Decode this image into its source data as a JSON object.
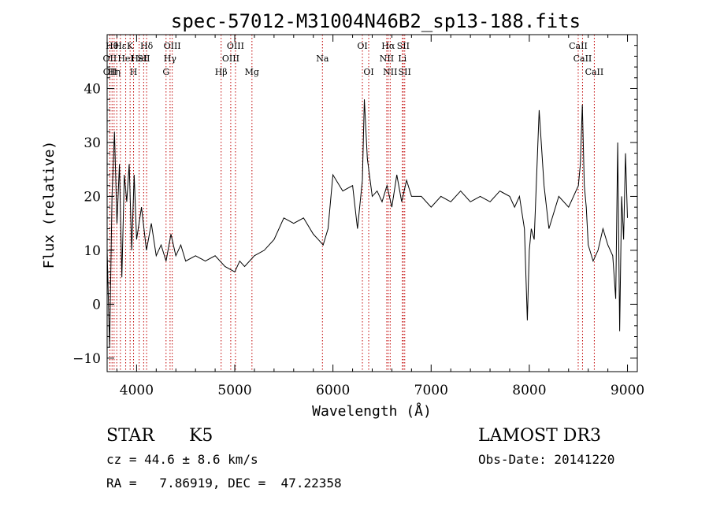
{
  "chart_data": {
    "type": "line",
    "title": "spec-57012-M31004N46B2_sp13-188.fits",
    "xlabel": "Wavelength (Å)",
    "ylabel": "Flux (relative)",
    "xlim": [
      3700,
      9100
    ],
    "ylim": [
      -12.5,
      50
    ],
    "x_ticks": [
      4000,
      5000,
      6000,
      7000,
      8000,
      9000
    ],
    "x_tick_labels": [
      "4000",
      "5000",
      "6000",
      "7000",
      "8000",
      "9000"
    ],
    "y_ticks": [
      -10,
      0,
      10,
      20,
      30,
      40
    ],
    "y_tick_labels": [
      "−10",
      "0",
      "10",
      "20",
      "30",
      "40"
    ],
    "grid": false,
    "line_color": "#000000",
    "marker_color": "#c00000",
    "series": [
      {
        "x": [
          3700,
          3725,
          3750,
          3775,
          3800,
          3825,
          3850,
          3875,
          3900,
          3925,
          3950,
          3975,
          4000,
          4050,
          4100,
          4150,
          4200,
          4250,
          4300,
          4350,
          4400,
          4450,
          4500,
          4600,
          4700,
          4800,
          4900,
          5000,
          5050,
          5100,
          5200,
          5300,
          5400,
          5500,
          5600,
          5700,
          5800,
          5850,
          5900,
          5950,
          6000,
          6100,
          6200,
          6250,
          6300,
          6320,
          6350,
          6400,
          6450,
          6500,
          6550,
          6600,
          6650,
          6700,
          6750,
          6800,
          6900,
          7000,
          7100,
          7200,
          7300,
          7400,
          7500,
          7600,
          7700,
          7800,
          7850,
          7900,
          7950,
          7980,
          8000,
          8020,
          8050,
          8100,
          8150,
          8200,
          8300,
          8400,
          8450,
          8500,
          8520,
          8540,
          8560,
          8580,
          8600,
          8650,
          8700,
          8750,
          8800,
          8850,
          8880,
          8900,
          8920,
          8940,
          8960,
          8980,
          9000
        ],
        "y": [
          10,
          -8,
          20,
          32,
          15,
          26,
          5,
          24,
          19,
          26,
          10,
          24,
          12,
          18,
          10,
          15,
          9,
          11,
          8,
          13,
          9,
          11,
          8,
          9,
          8,
          9,
          7,
          6,
          8,
          7,
          9,
          10,
          12,
          16,
          15,
          16,
          13,
          12,
          11,
          14,
          24,
          21,
          22,
          14,
          23,
          38,
          27,
          20,
          21,
          19,
          22,
          18,
          24,
          19,
          23,
          20,
          20,
          18,
          20,
          19,
          21,
          19,
          20,
          19,
          21,
          20,
          18,
          20,
          14,
          -3,
          10,
          14,
          12,
          36,
          22,
          14,
          20,
          18,
          20,
          22,
          26,
          37,
          22,
          18,
          11,
          8,
          10,
          14,
          11,
          9,
          1,
          30,
          -5,
          20,
          12,
          28,
          16
        ]
      }
    ],
    "line_markers": [
      {
        "wavelength": 3727,
        "label": "OII",
        "row": 2
      },
      {
        "wavelength": 3729,
        "label": "OII",
        "row": 3
      },
      {
        "wavelength": 3750,
        "label": "Hθ",
        "row": 1
      },
      {
        "wavelength": 3771,
        "label": "Hη",
        "row": 3
      },
      {
        "wavelength": 3798,
        "label": "",
        "row": 0
      },
      {
        "wavelength": 3835,
        "label": "Hε",
        "row": 1
      },
      {
        "wavelength": 3889,
        "label": "HeI",
        "row": 2
      },
      {
        "wavelength": 3934,
        "label": "K",
        "row": 1
      },
      {
        "wavelength": 3969,
        "label": "H",
        "row": 3
      },
      {
        "wavelength": 4026,
        "label": "HeI",
        "row": 2
      },
      {
        "wavelength": 4072,
        "label": "SII",
        "row": 2
      },
      {
        "wavelength": 4102,
        "label": "Hδ",
        "row": 1
      },
      {
        "wavelength": 4300,
        "label": "G",
        "row": 3
      },
      {
        "wavelength": 4341,
        "label": "Hγ",
        "row": 2
      },
      {
        "wavelength": 4363,
        "label": "OIII",
        "row": 1
      },
      {
        "wavelength": 4861,
        "label": "Hβ",
        "row": 3
      },
      {
        "wavelength": 4959,
        "label": "OIII",
        "row": 2
      },
      {
        "wavelength": 5007,
        "label": "OIII",
        "row": 1
      },
      {
        "wavelength": 5175,
        "label": "Mg",
        "row": 3
      },
      {
        "wavelength": 5893,
        "label": "Na",
        "row": 2
      },
      {
        "wavelength": 6300,
        "label": "OI",
        "row": 1
      },
      {
        "wavelength": 6364,
        "label": "OI",
        "row": 3
      },
      {
        "wavelength": 6548,
        "label": "NII",
        "row": 2
      },
      {
        "wavelength": 6563,
        "label": "Hα",
        "row": 1
      },
      {
        "wavelength": 6583,
        "label": "NII",
        "row": 3
      },
      {
        "wavelength": 6707,
        "label": "Li",
        "row": 2
      },
      {
        "wavelength": 6716,
        "label": "SII",
        "row": 1
      },
      {
        "wavelength": 6731,
        "label": "SII",
        "row": 3
      },
      {
        "wavelength": 8498,
        "label": "CaII",
        "row": 1
      },
      {
        "wavelength": 8542,
        "label": "CaII",
        "row": 2
      },
      {
        "wavelength": 8662,
        "label": "CaII",
        "row": 3
      }
    ]
  },
  "info": {
    "class": "STAR",
    "subclass": "K5",
    "survey": "LAMOST DR3",
    "cz": "cz = 44.6 ± 8.6 km/s",
    "obsdate": "Obs-Date: 20141220",
    "radec": "RA =   7.86919, DEC =  47.22358"
  }
}
